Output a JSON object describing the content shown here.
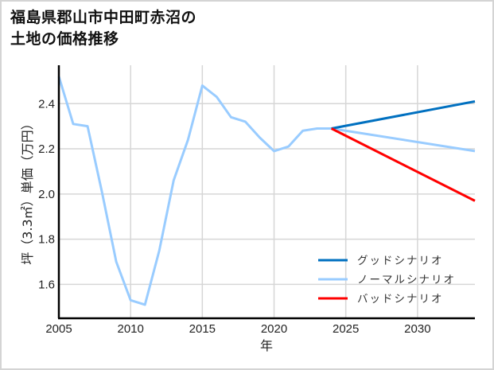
{
  "title": {
    "line1": "福島県郡山市中田町赤沼の",
    "line2": "土地の価格推移"
  },
  "chart_data": {
    "type": "line",
    "title": "福島県郡山市中田町赤沼の土地の価格推移",
    "xlabel": "年",
    "ylabel": "坪（3.3㎡）単価（万円）",
    "xlim": [
      2005,
      2034
    ],
    "ylim": [
      1.45,
      2.57
    ],
    "xticks": [
      2005,
      2010,
      2015,
      2020,
      2025,
      2030
    ],
    "yticks": [
      1.6,
      1.8,
      2.0,
      2.2,
      2.4
    ],
    "ytick_labels": [
      "1.6",
      "1.8",
      "2.0",
      "2.2",
      "2.4"
    ],
    "grid": true,
    "legend_position": "lower right",
    "series": [
      {
        "name": "ノーマルシナリオ",
        "color": "#99ccff",
        "x": [
          2005,
          2006,
          2007,
          2008,
          2009,
          2010,
          2011,
          2012,
          2013,
          2014,
          2015,
          2016,
          2017,
          2018,
          2019,
          2020,
          2021,
          2022,
          2023,
          2024,
          2034
        ],
        "values": [
          2.52,
          2.31,
          2.3,
          2.01,
          1.7,
          1.53,
          1.51,
          1.75,
          2.06,
          2.24,
          2.48,
          2.43,
          2.34,
          2.32,
          2.25,
          2.19,
          2.21,
          2.28,
          2.29,
          2.29,
          2.19
        ]
      },
      {
        "name": "グッドシナリオ",
        "color": "#0070c0",
        "x": [
          2024,
          2034
        ],
        "values": [
          2.29,
          2.41
        ]
      },
      {
        "name": "バッドシナリオ",
        "color": "#ff0000",
        "x": [
          2024,
          2034
        ],
        "values": [
          2.29,
          1.97
        ]
      }
    ],
    "legend": [
      "グッドシナリオ",
      "ノーマルシナリオ",
      "バッドシナリオ"
    ]
  }
}
